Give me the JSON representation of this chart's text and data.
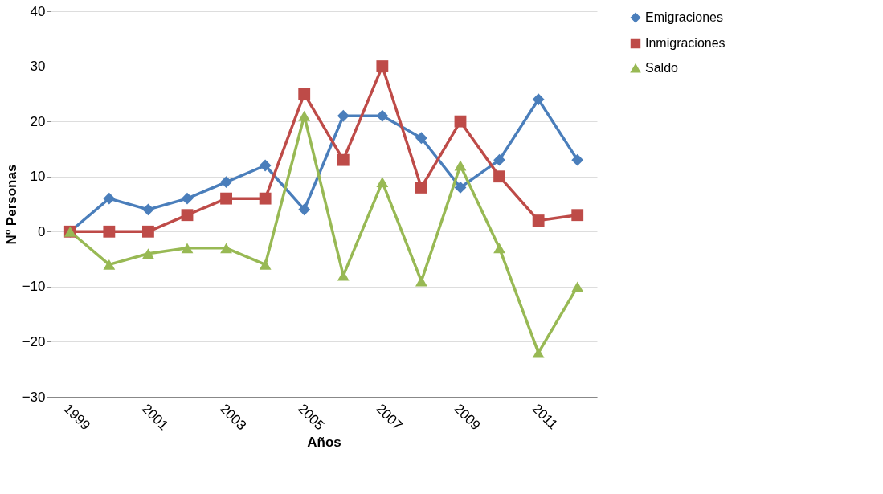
{
  "chart_data": {
    "type": "line",
    "xlabel": "Años",
    "ylabel": "Nº Personas",
    "categories": [
      "1999",
      null,
      "2001",
      null,
      "2003",
      null,
      "2005",
      null,
      "2007",
      null,
      "2009",
      null,
      "2011",
      null
    ],
    "ylim": [
      -30,
      40
    ],
    "yticks": [
      -30,
      -20,
      -10,
      0,
      10,
      20,
      30,
      40
    ],
    "grid": "y",
    "legend": "right",
    "line_style": "solid",
    "series": [
      {
        "name": "Emigraciones",
        "color": "#4a7ebb",
        "marker": "diamond",
        "values": [
          0,
          6,
          4,
          6,
          9,
          12,
          4,
          21,
          21,
          17,
          8,
          13,
          24,
          13
        ]
      },
      {
        "name": "Inmigraciones",
        "color": "#be4b48",
        "marker": "square",
        "values": [
          0,
          0,
          0,
          3,
          6,
          6,
          25,
          13,
          30,
          8,
          20,
          10,
          2,
          3
        ]
      },
      {
        "name": "Saldo",
        "color": "#98b954",
        "marker": "triangle",
        "values": [
          0,
          -6,
          -4,
          -3,
          -3,
          -6,
          21,
          -8,
          9,
          -9,
          12,
          -3,
          -22,
          -10
        ]
      }
    ]
  }
}
